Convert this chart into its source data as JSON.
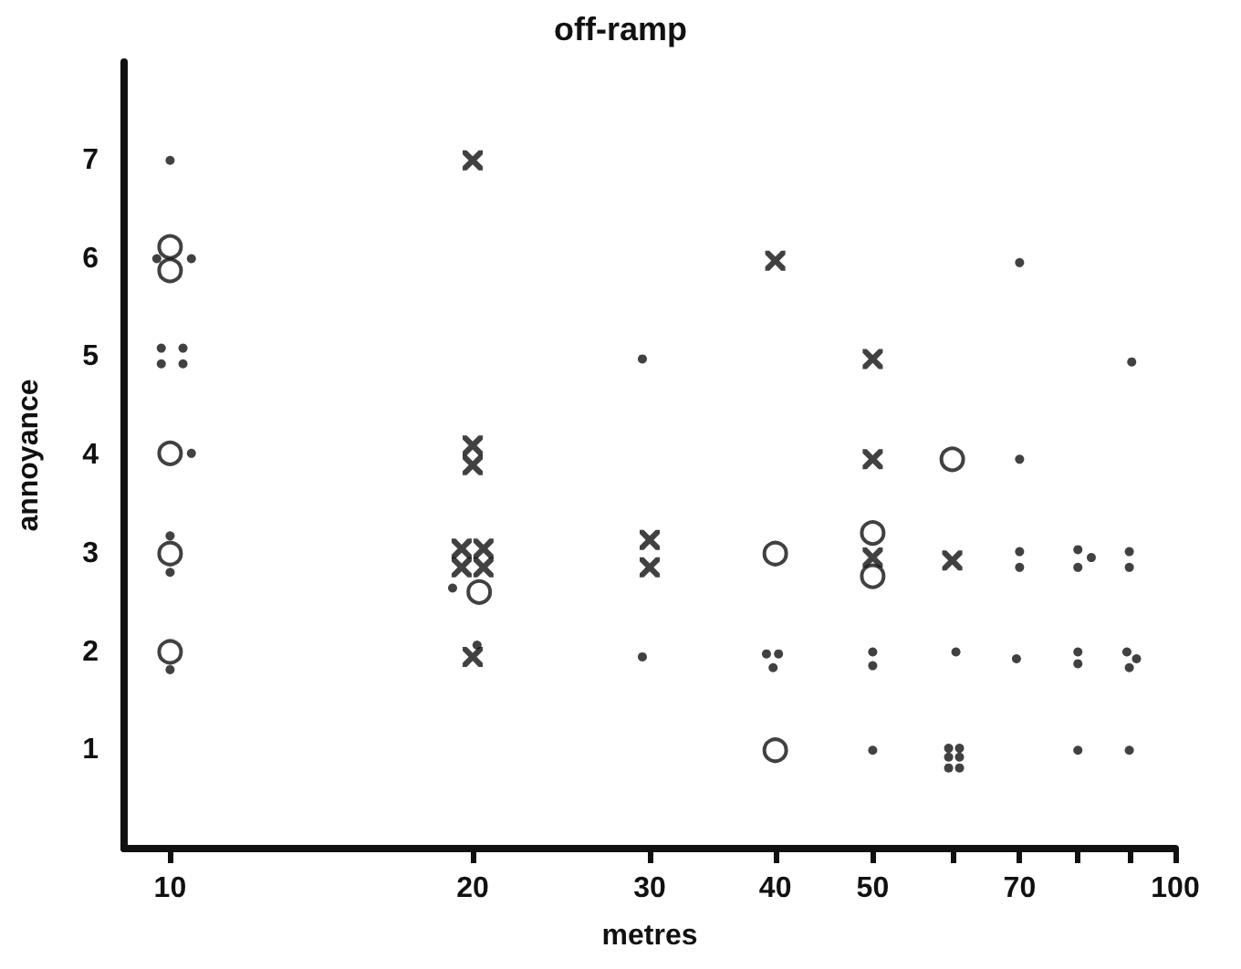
{
  "chart_data": {
    "type": "scatter",
    "title": "off-ramp",
    "xlabel": "metres",
    "ylabel": "annoyance",
    "log": "x",
    "xlim": [
      9,
      100
    ],
    "xticks": [
      10,
      20,
      30,
      40,
      50,
      {
        "value": 60,
        "label": null
      },
      70,
      {
        "value": 80,
        "label": null
      },
      {
        "value": 90,
        "label": null
      },
      100
    ],
    "ylim": [
      0,
      8
    ],
    "yticks": [
      1,
      2,
      3,
      4,
      5,
      6,
      7
    ],
    "grid": false,
    "series": [
      {
        "color": "#111111",
        "x": [
          10,
          9.7,
          10.5,
          9.8,
          10.3,
          9.8,
          10.3,
          10.5,
          10,
          10,
          10,
          29.5,
          19.1,
          20.2,
          29.5,
          39.2,
          40.3,
          39.8,
          50,
          50,
          50,
          60.5,
          59.5,
          61,
          59.5,
          61,
          59.5,
          61,
          70,
          70,
          70,
          70,
          69.5,
          80,
          80,
          82.5,
          80,
          80,
          80,
          90.5,
          90,
          90,
          89.5,
          91.5,
          90,
          90
        ],
        "values": [
          7,
          6,
          6,
          5.09,
          5.09,
          4.93,
          4.93,
          4.02,
          3.18,
          2.81,
          1.82,
          4.98,
          2.65,
          2.07,
          1.95,
          1.98,
          1.98,
          1.84,
          2,
          1.86,
          1,
          2,
          1.02,
          1.02,
          0.93,
          0.93,
          0.82,
          0.82,
          5.96,
          3.96,
          3.02,
          2.86,
          1.93,
          3.04,
          2.86,
          2.96,
          2,
          1.88,
          1,
          4.95,
          3.02,
          2.86,
          2,
          1.93,
          1.84,
          1
        ]
      },
      {
        "marker": "cross",
        "color": "#111111",
        "x": [
          20,
          20,
          20,
          19.5,
          20.5,
          19.5,
          20.5,
          20,
          30,
          30,
          40,
          50,
          50,
          50,
          60
        ],
        "values": [
          7,
          4.1,
          3.9,
          3.05,
          3.05,
          2.86,
          2.86,
          1.95,
          3.14,
          2.86,
          5.98,
          4.98,
          3.96,
          2.96,
          2.93
        ]
      },
      {
        "marker": "circle",
        "color": "#111111",
        "x": [
          10,
          10,
          10,
          10,
          10,
          20.3,
          40,
          40,
          50,
          50,
          60
        ],
        "values": [
          6.12,
          5.88,
          4.02,
          3,
          2,
          2.61,
          3,
          1,
          3.21,
          2.77,
          3.96
        ]
      }
    ]
  }
}
